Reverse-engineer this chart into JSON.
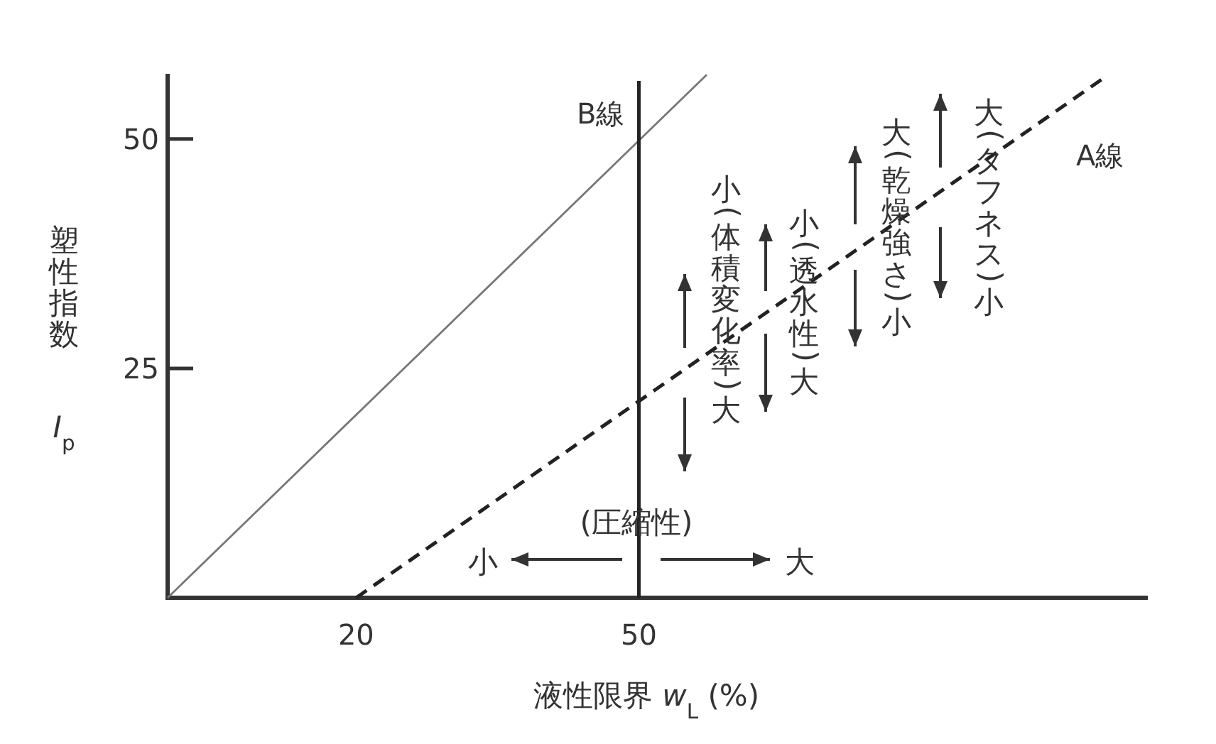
{
  "chart_data": {
    "type": "line",
    "xlabel": "液性限界 *w*$_{L}$ (%)",
    "ylabel": "塑性指数 *I*$_{p}$",
    "xlim": [
      0,
      104
    ],
    "ylim": [
      0,
      57.1
    ],
    "xticks": [
      20,
      50
    ],
    "yticks": [
      25,
      50
    ],
    "grid": false,
    "legend": false,
    "marker": "none",
    "series": [
      {
        "color": "#777777",
        "x": [
          0,
          57.2
        ],
        "values": [
          0,
          57.0
        ],
        "line_style": "solid"
      },
      {
        "name": "A線",
        "color": "#222222",
        "x": [
          20,
          99.4
        ],
        "values": [
          0,
          56.7
        ],
        "line_style": "dashed"
      }
    ],
    "ref_lines": [
      {
        "axis": "x",
        "value": 50,
        "label": "B線",
        "color": "#222222",
        "line_style": "solid"
      }
    ],
    "annotations": [
      "小(体積変化率)大",
      "小(透水性)大",
      "大(乾燥強さ)小",
      "大(タフネス)小",
      "(圧縮性)",
      "小",
      "大"
    ]
  }
}
